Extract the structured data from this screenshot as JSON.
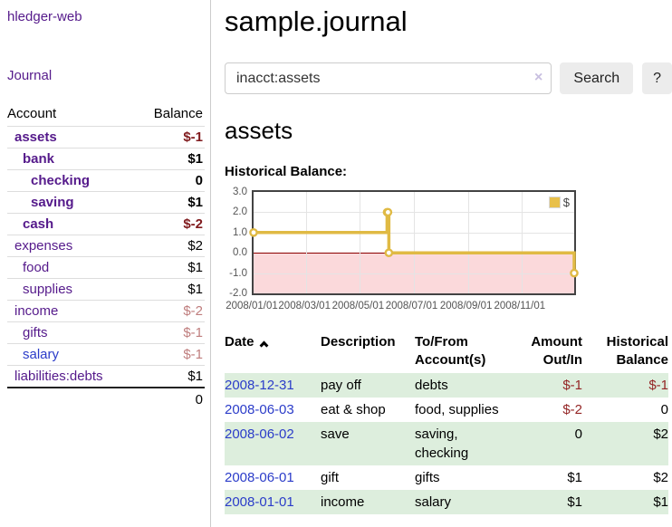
{
  "app": {
    "brand": "hledger-web"
  },
  "nav": {
    "journal": "Journal"
  },
  "sidebar": {
    "account_header": "Account",
    "balance_header": "Balance",
    "accounts": [
      {
        "name": "assets",
        "balance": "$-1"
      },
      {
        "name": "bank",
        "balance": "$1"
      },
      {
        "name": "checking",
        "balance": "0"
      },
      {
        "name": "saving",
        "balance": "$1"
      },
      {
        "name": "cash",
        "balance": "$-2"
      },
      {
        "name": "expenses",
        "balance": "$2"
      },
      {
        "name": "food",
        "balance": "$1"
      },
      {
        "name": "supplies",
        "balance": "$1"
      },
      {
        "name": "income",
        "balance": "$-2"
      },
      {
        "name": "gifts",
        "balance": "$-1"
      },
      {
        "name": "salary",
        "balance": "$-1"
      },
      {
        "name": "liabilities:debts",
        "balance": "$1"
      }
    ],
    "total": "0"
  },
  "page": {
    "title": "sample.journal",
    "account_heading": "assets",
    "chart_label": "Historical Balance:"
  },
  "search": {
    "value": "inacct:assets",
    "clear": "×",
    "submit": "Search",
    "help": "?"
  },
  "chart_data": {
    "type": "line",
    "title": "Historical Balance:",
    "step": "after",
    "series": [
      {
        "name": "$",
        "color": "#e0ba44",
        "points": [
          [
            "2008-01-01",
            1
          ],
          [
            "2008-06-01",
            2
          ],
          [
            "2008-06-02",
            2
          ],
          [
            "2008-06-03",
            0
          ],
          [
            "2008-12-31",
            -1
          ]
        ]
      }
    ],
    "x_range": [
      "2008-01-01",
      "2008-12-31"
    ],
    "ylim": [
      -2,
      3
    ],
    "y_ticks": [
      3.0,
      2.0,
      1.0,
      0.0,
      -1.0,
      -2.0
    ],
    "x_ticks": [
      "2008/01/01",
      "2008/03/01",
      "2008/05/01",
      "2008/07/01",
      "2008/09/01",
      "2008/11/01"
    ],
    "grid": true,
    "negative_region_fill": "#fbd9db",
    "zero_line_color": "#8b0000",
    "legend": {
      "label": "$",
      "position": "top-right"
    }
  },
  "register": {
    "headers": {
      "date": "Date",
      "description": "Description",
      "accounts": "To/From Account(s)",
      "amount": "Amount Out/In",
      "balance": "Historical Balance"
    },
    "rows": [
      {
        "date": "2008-12-31",
        "description": "pay off",
        "accounts": "debts",
        "amount": "$-1",
        "balance": "$-1"
      },
      {
        "date": "2008-06-03",
        "description": "eat & shop",
        "accounts": "food, supplies",
        "amount": "$-2",
        "balance": "0"
      },
      {
        "date": "2008-06-02",
        "description": "save",
        "accounts": "saving,\nchecking",
        "amount": "0",
        "balance": "$2"
      },
      {
        "date": "2008-06-01",
        "description": "gift",
        "accounts": "gifts",
        "amount": "$1",
        "balance": "$2"
      },
      {
        "date": "2008-01-01",
        "description": "income",
        "accounts": "salary",
        "amount": "$1",
        "balance": "$1"
      }
    ]
  }
}
